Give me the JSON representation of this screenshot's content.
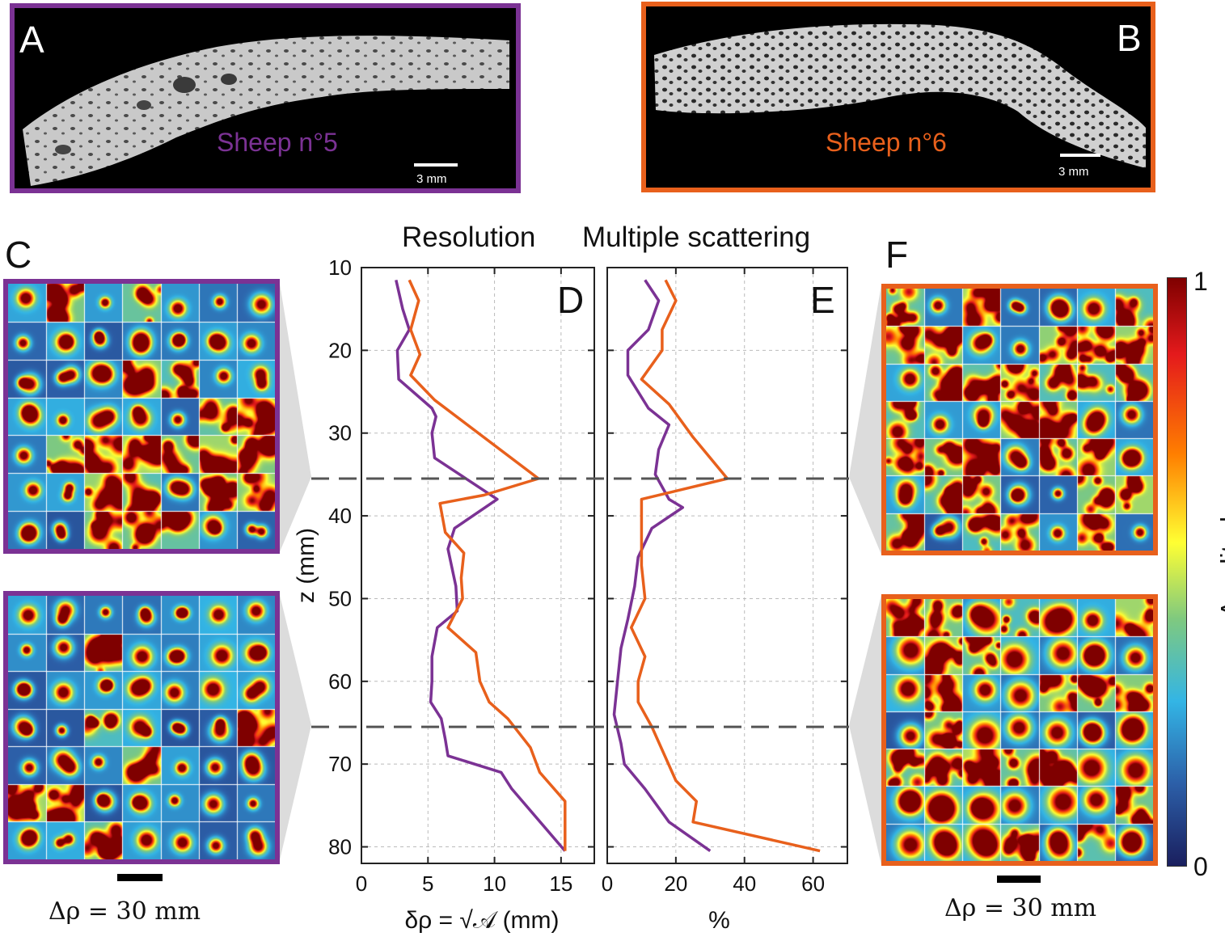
{
  "panels": {
    "A": {
      "letter": "A",
      "label": "Sheep n°5",
      "scalebar": "3 mm"
    },
    "B": {
      "letter": "B",
      "label": "Sheep n°6",
      "scalebar": "3 mm"
    },
    "C": {
      "letter": "C",
      "scale_label": "Δρ = 30 mm"
    },
    "D": {
      "letter": "D",
      "heading": "Resolution"
    },
    "E": {
      "letter": "E",
      "heading": "Multiple scattering"
    },
    "F": {
      "letter": "F",
      "scale_label": "Δρ = 30 mm"
    }
  },
  "colors": {
    "sheep5": "#7B3294",
    "sheep6": "#E8601C",
    "grid": "#bbbbbb",
    "dashed": "#555555"
  },
  "colorbar": {
    "label": "Amplitude",
    "max_label": "1",
    "min_label": "0"
  },
  "chart_data": [
    {
      "type": "line",
      "panel": "D",
      "title": "Resolution",
      "xlabel": "δρ = √𝒜 (mm)",
      "ylabel": "z (mm)",
      "xlim": [
        0,
        17.5
      ],
      "ylim": [
        10,
        82
      ],
      "y_reversed": true,
      "xticks": [
        0,
        5,
        10,
        15
      ],
      "yticks": [
        10,
        20,
        30,
        40,
        50,
        60,
        70,
        80
      ],
      "grid": true,
      "hlines": [
        35.5,
        65.5
      ],
      "series": [
        {
          "color": "#7B3294",
          "points": [
            [
              2.6,
              11.5
            ],
            [
              3.1,
              15
            ],
            [
              3.6,
              17.5
            ],
            [
              2.7,
              20
            ],
            [
              2.8,
              23.5
            ],
            [
              5.3,
              27
            ],
            [
              5.6,
              28
            ],
            [
              5.3,
              30
            ],
            [
              5.5,
              33
            ],
            [
              10.2,
              38
            ],
            [
              7.0,
              41.5
            ],
            [
              6.5,
              44
            ],
            [
              7.1,
              48.5
            ],
            [
              7.2,
              51.5
            ],
            [
              5.7,
              53.5
            ],
            [
              5.3,
              57
            ],
            [
              5.3,
              60
            ],
            [
              5.2,
              62.5
            ],
            [
              6.0,
              64.5
            ],
            [
              6.3,
              67
            ],
            [
              6.5,
              69
            ],
            [
              10.5,
              71
            ],
            [
              11.3,
              73
            ],
            [
              15.3,
              80.5
            ]
          ]
        },
        {
          "color": "#E8601C",
          "points": [
            [
              3.6,
              11.5
            ],
            [
              4.3,
              14
            ],
            [
              3.7,
              17.5
            ],
            [
              4.4,
              20.5
            ],
            [
              3.7,
              23
            ],
            [
              5.5,
              26
            ],
            [
              13.3,
              35.5
            ],
            [
              9.2,
              37.5
            ],
            [
              5.9,
              38.5
            ],
            [
              6.3,
              42
            ],
            [
              7.7,
              44.5
            ],
            [
              7.5,
              47.5
            ],
            [
              7.6,
              50
            ],
            [
              6.5,
              53.5
            ],
            [
              8.6,
              56.5
            ],
            [
              8.9,
              60
            ],
            [
              9.6,
              62.5
            ],
            [
              11.0,
              64.5
            ],
            [
              12.7,
              68
            ],
            [
              13.4,
              71
            ],
            [
              15.3,
              74.5
            ],
            [
              15.3,
              80.5
            ]
          ]
        }
      ]
    },
    {
      "type": "line",
      "panel": "E",
      "title": "Multiple scattering",
      "xlabel": "%",
      "ylabel": "",
      "xlim": [
        0,
        70
      ],
      "ylim": [
        10,
        82
      ],
      "y_reversed": true,
      "xticks": [
        0,
        20,
        40,
        60
      ],
      "yticks": [
        10,
        20,
        30,
        40,
        50,
        60,
        70,
        80
      ],
      "grid": true,
      "hlines": [
        35.5,
        65.5
      ],
      "series": [
        {
          "color": "#7B3294",
          "points": [
            [
              11,
              11.5
            ],
            [
              15,
              14
            ],
            [
              12,
              17.5
            ],
            [
              6,
              20
            ],
            [
              6,
              23
            ],
            [
              12,
              27
            ],
            [
              18,
              29
            ],
            [
              15,
              32
            ],
            [
              14,
              35
            ],
            [
              18,
              38
            ],
            [
              22,
              39
            ],
            [
              13,
              41.5
            ],
            [
              9,
              45
            ],
            [
              8,
              48.5
            ],
            [
              6,
              52.5
            ],
            [
              4,
              56
            ],
            [
              3,
              60
            ],
            [
              2,
              64
            ],
            [
              4,
              67.5
            ],
            [
              5,
              70
            ],
            [
              11,
              73
            ],
            [
              18,
              77
            ],
            [
              30,
              80.5
            ]
          ]
        },
        {
          "color": "#E8601C",
          "points": [
            [
              17,
              11.5
            ],
            [
              20,
              14
            ],
            [
              16,
              17.5
            ],
            [
              16,
              20
            ],
            [
              10,
              23.5
            ],
            [
              18,
              26.5
            ],
            [
              25,
              30.5
            ],
            [
              35,
              35.5
            ],
            [
              10,
              38
            ],
            [
              10,
              42
            ],
            [
              10,
              46
            ],
            [
              11,
              50
            ],
            [
              7,
              53.5
            ],
            [
              11,
              57
            ],
            [
              9,
              60
            ],
            [
              9,
              62.5
            ],
            [
              13,
              65.5
            ],
            [
              20,
              72
            ],
            [
              26,
              74.5
            ],
            [
              25,
              77
            ],
            [
              62,
              80.5
            ]
          ]
        }
      ]
    }
  ]
}
